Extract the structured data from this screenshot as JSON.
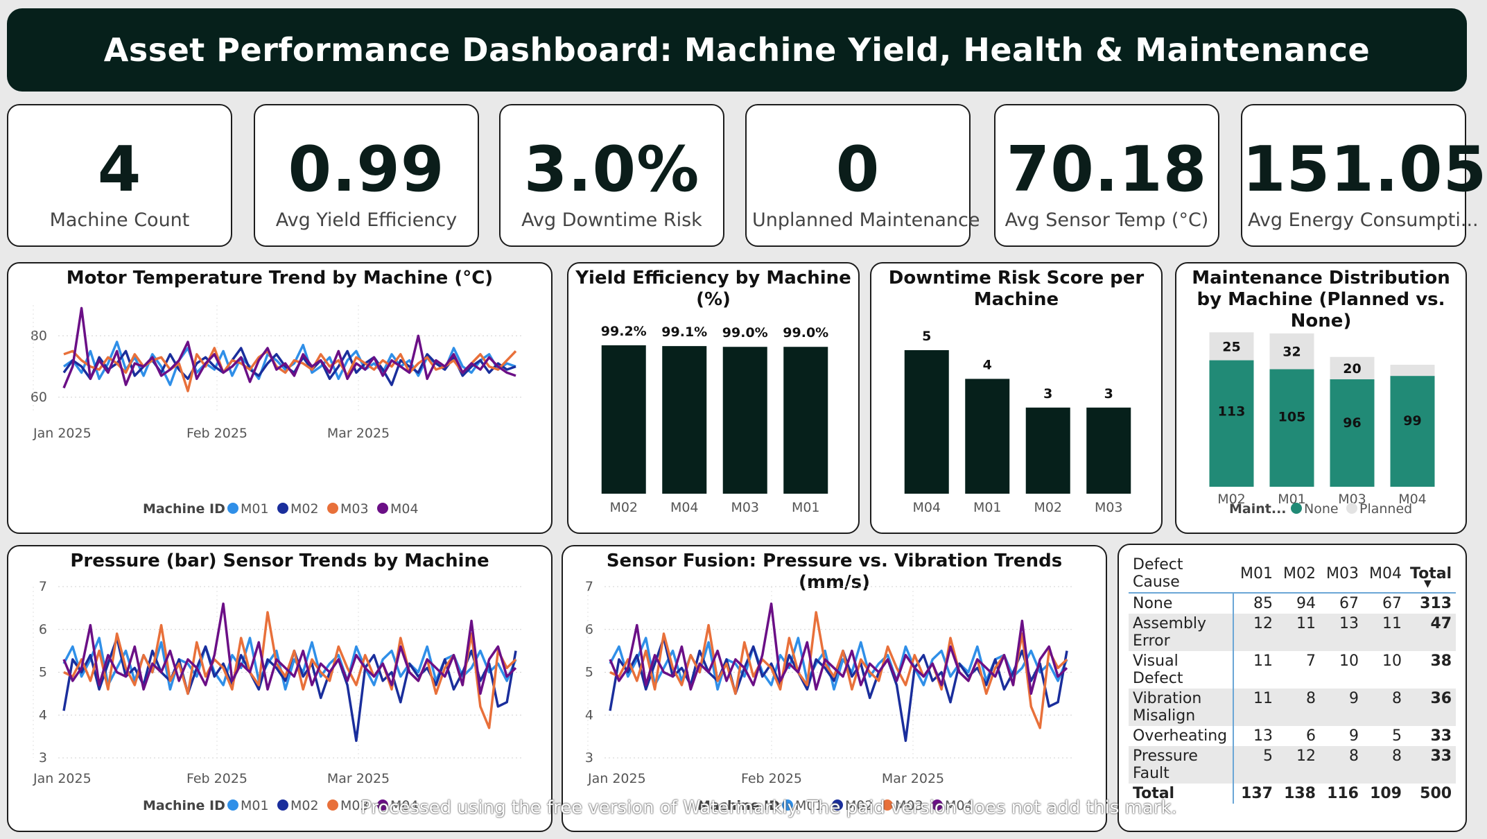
{
  "header": {
    "title": "Asset Performance Dashboard: Machine Yield, Health & Maintenance"
  },
  "kpis": [
    {
      "value": "4",
      "label": "Machine Count"
    },
    {
      "value": "0.99",
      "label": "Avg Yield Efficiency"
    },
    {
      "value": "3.0%",
      "label": "Avg Downtime Risk"
    },
    {
      "value": "0",
      "label": "Unplanned Maintenance"
    },
    {
      "value": "70.18",
      "label": "Avg Sensor Temp (°C)"
    },
    {
      "value": "151.05",
      "label": "Avg Energy Consumpti..."
    }
  ],
  "colors": {
    "M01": "#2f8fe8",
    "M02": "#1a2e9c",
    "M03": "#e8703a",
    "M04": "#6b0f86",
    "bar": "#06201b",
    "none": "#218a76",
    "planned": "#e3e3e3"
  },
  "chart_data": [
    {
      "type": "line",
      "title": "Motor Temperature Trend by Machine (°C)",
      "xticks": [
        "Jan 2025",
        "Feb 2025",
        "Mar 2025"
      ],
      "yticks": [
        60,
        80
      ],
      "ylim": [
        55,
        90
      ],
      "legend_title": "Machine ID",
      "series": [
        {
          "name": "M01",
          "values": [
            70,
            72,
            68,
            75,
            66,
            71,
            78,
            69,
            73,
            67,
            74,
            70,
            64,
            72,
            76,
            68,
            71,
            69,
            75,
            67,
            73,
            70,
            66,
            74,
            72,
            69,
            71,
            77,
            68,
            70,
            73,
            66,
            72,
            75,
            69,
            71,
            68,
            74,
            70,
            72,
            67,
            73,
            71,
            69,
            76,
            70,
            68,
            72,
            74,
            69,
            71,
            70
          ]
        },
        {
          "name": "M02",
          "values": [
            68,
            72,
            70,
            66,
            73,
            69,
            71,
            75,
            67,
            70,
            72,
            68,
            74,
            69,
            66,
            71,
            73,
            70,
            68,
            72,
            76,
            69,
            67,
            71,
            74,
            70,
            68,
            73,
            69,
            72,
            66,
            70,
            75,
            68,
            71,
            73,
            69,
            64,
            72,
            70,
            68,
            74,
            71,
            69,
            73,
            67,
            70,
            72,
            68,
            71,
            69,
            70
          ]
        },
        {
          "name": "M03",
          "values": [
            74,
            75,
            72,
            70,
            69,
            73,
            71,
            68,
            74,
            70,
            72,
            73,
            69,
            71,
            62,
            74,
            70,
            76,
            68,
            72,
            71,
            69,
            73,
            75,
            70,
            68,
            72,
            71,
            69,
            74,
            70,
            72,
            67,
            73,
            71,
            69,
            72,
            70,
            74,
            68,
            71,
            73,
            69,
            70,
            72,
            68,
            71,
            74,
            70,
            69,
            72,
            75
          ]
        },
        {
          "name": "M04",
          "values": [
            63,
            70,
            89,
            66,
            72,
            68,
            75,
            64,
            71,
            70,
            73,
            67,
            69,
            72,
            78,
            66,
            71,
            74,
            68,
            70,
            73,
            65,
            72,
            76,
            69,
            71,
            67,
            74,
            70,
            72,
            68,
            75,
            66,
            71,
            69,
            73,
            67,
            72,
            70,
            68,
            80,
            66,
            72,
            70,
            74,
            68,
            71,
            69,
            73,
            70,
            68,
            67
          ]
        }
      ]
    },
    {
      "type": "bar",
      "title": "Yield Efficiency by Machine (%)",
      "categories": [
        "M02",
        "M04",
        "M03",
        "M01"
      ],
      "values": [
        99.2,
        99.1,
        99.0,
        99.0
      ],
      "labels": [
        "99.2%",
        "99.1%",
        "99.0%",
        "99.0%"
      ]
    },
    {
      "type": "bar",
      "title": "Downtime Risk Score per Machine",
      "categories": [
        "M04",
        "M01",
        "M02",
        "M03"
      ],
      "values": [
        5,
        4,
        3,
        3
      ],
      "labels": [
        "5",
        "4",
        "3",
        "3"
      ]
    },
    {
      "type": "bar",
      "stacked": true,
      "title": "Maintenance Distribution by Machine (Planned vs. None)",
      "categories": [
        "M02",
        "M01",
        "M03",
        "M04"
      ],
      "legend_title": "Maint...",
      "series": [
        {
          "name": "None",
          "values": [
            113,
            105,
            96,
            99
          ],
          "labels": [
            "113",
            "105",
            "96",
            "99"
          ]
        },
        {
          "name": "Planned",
          "values": [
            25,
            32,
            20,
            10
          ],
          "labels": [
            "25",
            "32",
            "20",
            ""
          ]
        }
      ]
    },
    {
      "type": "line",
      "title": "Pressure (bar) Sensor Trends by Machine",
      "xticks": [
        "Jan 2025",
        "Feb 2025",
        "Mar 2025"
      ],
      "yticks": [
        3,
        4,
        5,
        6,
        7
      ],
      "ylim": [
        3,
        7
      ],
      "legend_title": "Machine ID",
      "series": [
        {
          "name": "M01",
          "values": [
            5.2,
            5.6,
            4.9,
            5.3,
            5.8,
            4.7,
            5.1,
            5.5,
            4.8,
            5.4,
            5.0,
            5.7,
            4.6,
            5.3,
            5.2,
            4.9,
            5.6,
            5.0,
            4.7,
            5.4,
            5.1,
            5.8,
            4.8,
            5.2,
            5.5,
            4.6,
            5.3,
            5.0,
            5.7,
            4.9,
            5.2,
            5.4,
            4.8,
            5.6,
            5.1,
            4.7,
            5.3,
            5.5,
            4.9,
            5.2,
            5.0,
            5.6,
            4.8,
            5.3,
            5.4,
            4.9,
            5.1,
            5.5,
            5.0,
            5.2,
            4.8,
            5.3
          ]
        },
        {
          "name": "M02",
          "values": [
            4.1,
            5.3,
            5.0,
            5.4,
            4.6,
            5.2,
            5.8,
            4.9,
            5.1,
            4.7,
            5.5,
            5.0,
            4.8,
            5.3,
            4.5,
            5.1,
            5.6,
            4.9,
            5.2,
            4.7,
            5.4,
            5.0,
            4.6,
            5.3,
            5.1,
            4.8,
            5.5,
            4.9,
            5.2,
            4.4,
            5.0,
            5.3,
            4.7,
            3.4,
            5.1,
            5.4,
            4.8,
            5.0,
            4.3,
            5.2,
            4.9,
            5.1,
            4.7,
            5.3,
            4.6,
            5.0,
            5.5,
            4.8,
            5.2,
            4.2,
            4.3,
            5.5
          ]
        },
        {
          "name": "M03",
          "values": [
            5.0,
            4.9,
            5.3,
            4.8,
            5.5,
            4.6,
            5.9,
            5.1,
            4.7,
            5.4,
            5.0,
            6.1,
            4.8,
            5.2,
            4.5,
            5.7,
            4.9,
            5.3,
            5.1,
            4.6,
            5.8,
            5.0,
            4.7,
            6.4,
            5.2,
            4.9,
            5.5,
            4.6,
            5.3,
            5.0,
            4.8,
            5.6,
            5.1,
            4.7,
            5.4,
            4.9,
            5.2,
            4.6,
            5.8,
            5.0,
            4.8,
            5.3,
            4.5,
            5.1,
            5.4,
            4.7,
            5.9,
            4.2,
            3.7,
            5.5,
            5.1,
            5.3
          ]
        },
        {
          "name": "M04",
          "values": [
            5.3,
            4.8,
            5.1,
            6.1,
            4.7,
            5.4,
            5.0,
            4.9,
            5.6,
            4.6,
            5.2,
            5.0,
            5.5,
            4.8,
            5.3,
            5.1,
            4.7,
            5.4,
            6.6,
            4.8,
            5.2,
            5.0,
            5.7,
            4.6,
            5.3,
            5.1,
            4.9,
            5.5,
            4.7,
            5.2,
            5.0,
            5.3,
            4.8,
            5.4,
            5.1,
            4.9,
            5.2,
            4.7,
            5.6,
            5.0,
            4.8,
            5.3,
            5.1,
            4.9,
            5.4,
            4.7,
            6.2,
            4.5,
            5.3,
            5.6,
            4.9,
            5.1
          ]
        }
      ]
    },
    {
      "type": "line",
      "title": "Sensor Fusion: Pressure vs. Vibration Trends (mm/s)",
      "xticks": [
        "Jan 2025",
        "Feb 2025",
        "Mar 2025"
      ],
      "yticks": [
        3,
        4,
        5,
        6,
        7
      ],
      "ylim": [
        3,
        7
      ],
      "legend_title": "Machine ID",
      "series": [
        {
          "name": "M01",
          "values": [
            5.2,
            5.6,
            4.9,
            5.3,
            5.8,
            4.7,
            5.1,
            5.5,
            4.8,
            5.4,
            5.0,
            5.7,
            4.6,
            5.3,
            5.2,
            4.9,
            5.6,
            5.0,
            4.7,
            5.4,
            5.1,
            5.8,
            4.8,
            5.2,
            5.5,
            4.6,
            5.3,
            5.0,
            5.7,
            4.9,
            5.2,
            5.4,
            4.8,
            5.6,
            5.1,
            4.7,
            5.3,
            5.5,
            4.9,
            5.2,
            5.0,
            5.6,
            4.8,
            5.3,
            5.4,
            4.9,
            5.1,
            5.5,
            5.0,
            5.2,
            4.8,
            5.3
          ]
        },
        {
          "name": "M02",
          "values": [
            4.1,
            5.3,
            5.0,
            5.4,
            4.6,
            5.2,
            5.8,
            4.9,
            5.1,
            4.7,
            5.5,
            5.0,
            4.8,
            5.3,
            4.5,
            5.1,
            5.6,
            4.9,
            5.2,
            4.7,
            5.4,
            5.0,
            4.6,
            5.3,
            5.1,
            4.8,
            5.5,
            4.9,
            5.2,
            4.4,
            5.0,
            5.3,
            4.7,
            3.4,
            5.1,
            5.4,
            4.8,
            5.0,
            4.3,
            5.2,
            4.9,
            5.1,
            4.7,
            5.3,
            4.6,
            5.0,
            5.5,
            4.8,
            5.2,
            4.2,
            4.3,
            5.5
          ]
        },
        {
          "name": "M03",
          "values": [
            5.0,
            4.9,
            5.3,
            4.8,
            5.5,
            4.6,
            5.9,
            5.1,
            4.7,
            5.4,
            5.0,
            6.1,
            4.8,
            5.2,
            4.5,
            5.7,
            4.9,
            5.3,
            5.1,
            4.6,
            5.8,
            5.0,
            4.7,
            6.4,
            5.2,
            4.9,
            5.5,
            4.6,
            5.3,
            5.0,
            4.8,
            5.6,
            5.1,
            4.7,
            5.4,
            4.9,
            5.2,
            4.6,
            5.8,
            5.0,
            4.8,
            5.3,
            4.5,
            5.1,
            5.4,
            4.7,
            5.9,
            4.2,
            3.7,
            5.5,
            5.1,
            5.3
          ]
        },
        {
          "name": "M04",
          "values": [
            5.3,
            4.8,
            5.1,
            6.1,
            4.7,
            5.4,
            5.0,
            4.9,
            5.6,
            4.6,
            5.2,
            5.0,
            5.5,
            4.8,
            5.3,
            5.1,
            4.7,
            5.4,
            6.6,
            4.8,
            5.2,
            5.0,
            5.7,
            4.6,
            5.3,
            5.1,
            4.9,
            5.5,
            4.7,
            5.2,
            5.0,
            5.3,
            4.8,
            5.4,
            5.1,
            4.9,
            5.2,
            4.7,
            5.6,
            5.0,
            4.8,
            5.3,
            5.1,
            4.9,
            5.4,
            4.7,
            6.2,
            4.5,
            5.3,
            5.6,
            4.9,
            5.1
          ]
        }
      ]
    },
    {
      "type": "table",
      "columns": [
        "Defect Cause",
        "M01",
        "M02",
        "M03",
        "M04",
        "Total"
      ],
      "rows": [
        {
          "cause": "None",
          "values": [
            "85",
            "94",
            "67",
            "67"
          ],
          "total": "313"
        },
        {
          "cause": "Assembly Error",
          "values": [
            "12",
            "11",
            "13",
            "11"
          ],
          "total": "47"
        },
        {
          "cause": "Visual Defect",
          "values": [
            "11",
            "7",
            "10",
            "10"
          ],
          "total": "38"
        },
        {
          "cause": "Vibration Misalign",
          "values": [
            "11",
            "8",
            "9",
            "8"
          ],
          "total": "36"
        },
        {
          "cause": "Overheating",
          "values": [
            "13",
            "6",
            "9",
            "5"
          ],
          "total": "33"
        },
        {
          "cause": "Pressure Fault",
          "values": [
            "5",
            "12",
            "8",
            "8"
          ],
          "total": "33"
        }
      ],
      "total_row": {
        "cause": "Total",
        "values": [
          "137",
          "138",
          "116",
          "109"
        ],
        "total": "500"
      }
    }
  ],
  "watermark": "Processed using the free version of Watermarkly. The paid version does not add this mark."
}
